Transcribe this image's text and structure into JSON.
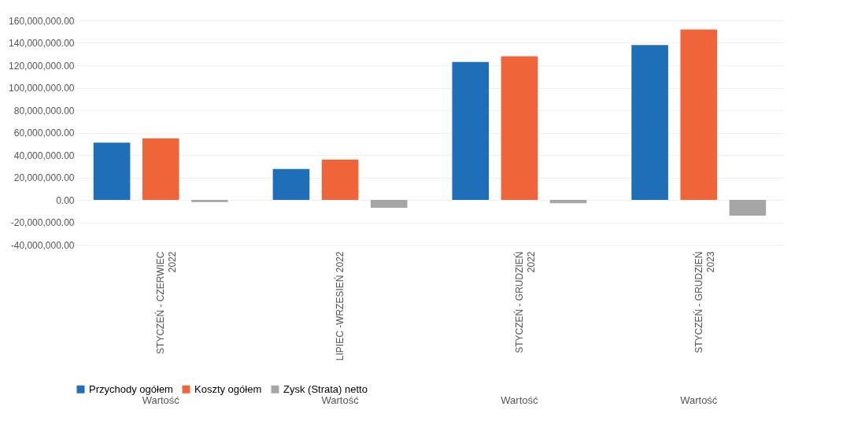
{
  "chart_data": {
    "type": "bar",
    "categories": [
      "STYCZEŃ - CZERWIEC\n2022",
      "LIPIEC -WRZESIEŃ 2022",
      "STYCZEŃ - GRUDZIEŃ\n2022",
      "STYCZEŃ - GRUDZIEŃ\n2023"
    ],
    "series": [
      {
        "name": "Przychody ogółem",
        "color": "#1f6fb8",
        "values": [
          51000000,
          27500000,
          123000000,
          138000000
        ]
      },
      {
        "name": "Koszty ogółem",
        "color": "#f0643a",
        "values": [
          55000000,
          36000000,
          128000000,
          152000000
        ]
      },
      {
        "name": "Zysk (Strata) netto",
        "color": "#a6a6a6",
        "values": [
          -2000000,
          -7000000,
          -3000000,
          -14000000
        ]
      }
    ],
    "ylim": [
      -40000000,
      160000000
    ],
    "yticks": [
      {
        "value": -40000000,
        "label": "-40,000,000.00"
      },
      {
        "value": -20000000,
        "label": "-20,000,000.00"
      },
      {
        "value": 0,
        "label": "0.00"
      },
      {
        "value": 20000000,
        "label": "20,000,000.00"
      },
      {
        "value": 40000000,
        "label": "40,000,000.00"
      },
      {
        "value": 60000000,
        "label": "60,000,000.00"
      },
      {
        "value": 80000000,
        "label": "80,000,000.00"
      },
      {
        "value": 100000000,
        "label": "100,000,000.00"
      },
      {
        "value": 120000000,
        "label": "120,000,000.00"
      },
      {
        "value": 140000000,
        "label": "140,000,000.00"
      },
      {
        "value": 160000000,
        "label": "160,000,000.00"
      }
    ],
    "annotations": [
      "Wartość",
      "Wartość",
      "Wartość",
      "Wartość"
    ],
    "grid": "y",
    "legend": "bottom"
  }
}
